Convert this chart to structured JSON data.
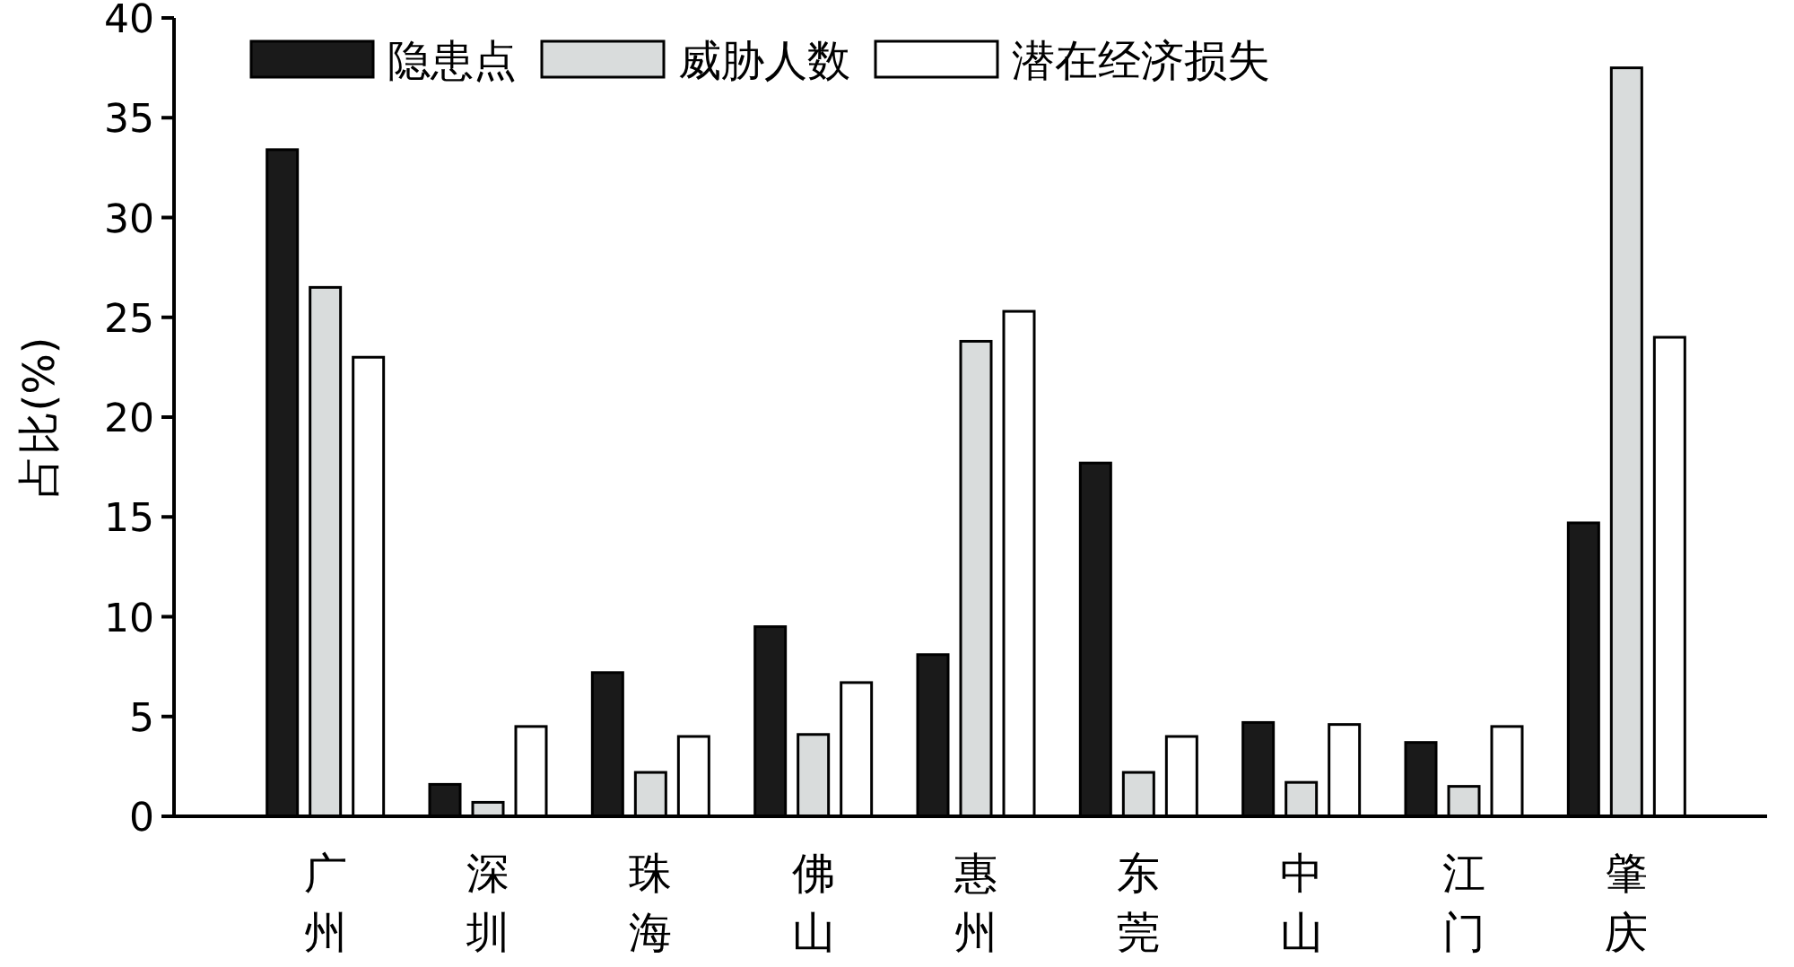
{
  "chart_data": {
    "type": "bar",
    "ylabel": "占比(%)",
    "categories": [
      "广州",
      "深圳",
      "珠海",
      "佛山",
      "惠州",
      "东莞",
      "中山",
      "江门",
      "肇庆"
    ],
    "series": [
      {
        "name": "隐患点",
        "color": "#1a1a1a",
        "values": [
          33.4,
          1.6,
          7.2,
          9.5,
          8.1,
          17.7,
          4.7,
          3.7,
          14.7
        ]
      },
      {
        "name": "威胁人数",
        "color": "#d9dcdc",
        "values": [
          26.5,
          0.7,
          2.2,
          4.1,
          23.8,
          2.2,
          1.7,
          1.5,
          37.5
        ]
      },
      {
        "name": "潜在经济损失",
        "color": "#ffffff",
        "values": [
          23.0,
          4.5,
          4.0,
          6.7,
          25.3,
          4.0,
          4.6,
          4.5,
          24.0
        ]
      }
    ],
    "ylim": [
      0,
      40
    ],
    "yticks": [
      0,
      5,
      10,
      15,
      20,
      25,
      30,
      35,
      40
    ],
    "legend": "top"
  }
}
